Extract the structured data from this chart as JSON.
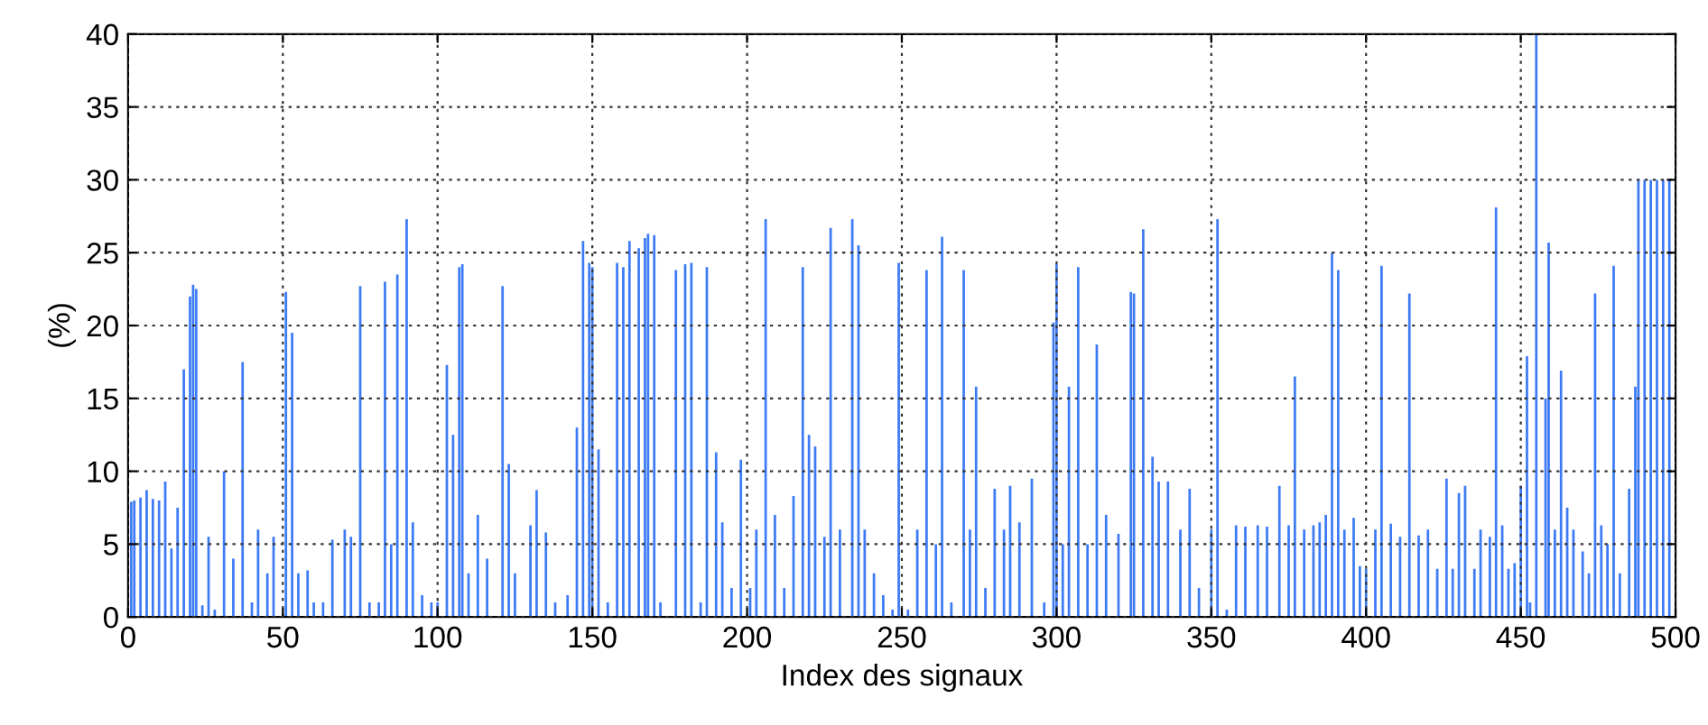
{
  "chart_data": {
    "type": "bar",
    "xlabel": "Index des signaux",
    "ylabel": "(%)",
    "x": [
      1,
      2,
      4,
      6,
      8,
      10,
      12,
      14,
      16,
      18,
      20,
      21,
      22,
      24,
      26,
      28,
      31,
      34,
      37,
      40,
      42,
      45,
      47,
      51,
      53,
      55,
      58,
      60,
      63,
      66,
      70,
      72,
      75,
      78,
      81,
      83,
      85,
      87,
      90,
      92,
      95,
      98,
      100,
      103,
      105,
      107,
      108,
      110,
      113,
      116,
      121,
      123,
      125,
      130,
      132,
      135,
      138,
      142,
      145,
      147,
      149,
      150,
      152,
      155,
      158,
      160,
      162,
      165,
      167,
      168,
      170,
      172,
      177,
      180,
      182,
      185,
      187,
      190,
      192,
      195,
      198,
      201,
      203,
      206,
      209,
      212,
      215,
      218,
      220,
      222,
      225,
      227,
      230,
      234,
      236,
      238,
      241,
      244,
      247,
      249,
      252,
      255,
      258,
      261,
      263,
      266,
      270,
      272,
      274,
      277,
      280,
      283,
      285,
      288,
      292,
      296,
      299,
      300,
      302,
      304,
      307,
      310,
      313,
      316,
      320,
      324,
      325,
      328,
      331,
      333,
      336,
      340,
      343,
      346,
      350,
      352,
      355,
      358,
      361,
      365,
      368,
      372,
      375,
      377,
      380,
      383,
      385,
      387,
      389,
      391,
      393,
      396,
      398,
      400,
      403,
      405,
      408,
      411,
      414,
      417,
      420,
      423,
      426,
      428,
      430,
      432,
      435,
      437,
      440,
      442,
      444,
      446,
      448,
      450,
      452,
      453,
      455,
      458,
      459,
      461,
      463,
      465,
      467,
      470,
      472,
      474,
      476,
      478,
      480,
      482,
      485,
      487,
      488,
      490,
      492,
      494,
      496,
      498
    ],
    "values": [
      7.9,
      8,
      8.2,
      8.7,
      8.1,
      8,
      9.3,
      4.7,
      7.5,
      17,
      22,
      22.8,
      22.5,
      0.8,
      5.5,
      0.5,
      10,
      4,
      17.5,
      1,
      6,
      3,
      5.5,
      22.3,
      19.5,
      3,
      3.2,
      1,
      1,
      5.3,
      6,
      5.5,
      22.7,
      1,
      1,
      23,
      5,
      23.5,
      27.3,
      6.5,
      1.5,
      1,
      1,
      17.3,
      12.5,
      24,
      24.2,
      3,
      7,
      4,
      22.7,
      10.5,
      3,
      6.3,
      8.7,
      5.8,
      1,
      1.5,
      13,
      25.8,
      24.3,
      24,
      11.5,
      1,
      24.3,
      24,
      25.8,
      25.3,
      26,
      26.3,
      26.2,
      1,
      23.8,
      24.2,
      24.3,
      1,
      24,
      11.3,
      6.5,
      2,
      10.8,
      2,
      6,
      27.3,
      7,
      2,
      8.3,
      24,
      12.5,
      11.7,
      5.5,
      26.7,
      6,
      27.3,
      25.5,
      6,
      3,
      1.5,
      0.5,
      24.3,
      0.5,
      6,
      23.8,
      5,
      26.1,
      1,
      23.8,
      6,
      15.8,
      2,
      8.8,
      6,
      9,
      6.5,
      9.5,
      1,
      20.2,
      24.2,
      5,
      15.8,
      24,
      5,
      18.7,
      7,
      5.7,
      22.3,
      22.2,
      26.6,
      11,
      9.3,
      9.3,
      6,
      8.8,
      2,
      6,
      27.3,
      0.5,
      6.3,
      6.2,
      6.3,
      6.2,
      9,
      6.3,
      16.5,
      6,
      6.3,
      6.5,
      7,
      25,
      23.8,
      6,
      6.8,
      3.5,
      3.3,
      6,
      24.1,
      6.4,
      5.5,
      22.2,
      5.6,
      6,
      3.3,
      9.5,
      3.3,
      8.5,
      9,
      3.3,
      6,
      5.5,
      28.1,
      6.3,
      3.3,
      3.7,
      9,
      17.9,
      1,
      40,
      15,
      25.7,
      6,
      16.9,
      7.5,
      6,
      4.5,
      3,
      22.2,
      6.3,
      5,
      24.1,
      3,
      8.8,
      15.8,
      30,
      30,
      30,
      30,
      30,
      30
    ],
    "color": "#3d7bf5",
    "xlim": [
      0,
      500
    ],
    "xticks": [
      0,
      50,
      100,
      150,
      200,
      250,
      300,
      350,
      400,
      450,
      500
    ],
    "ylim": [
      0,
      40
    ],
    "yticks": [
      0,
      5,
      10,
      15,
      20,
      25,
      30,
      35,
      40
    ],
    "grid": true
  }
}
